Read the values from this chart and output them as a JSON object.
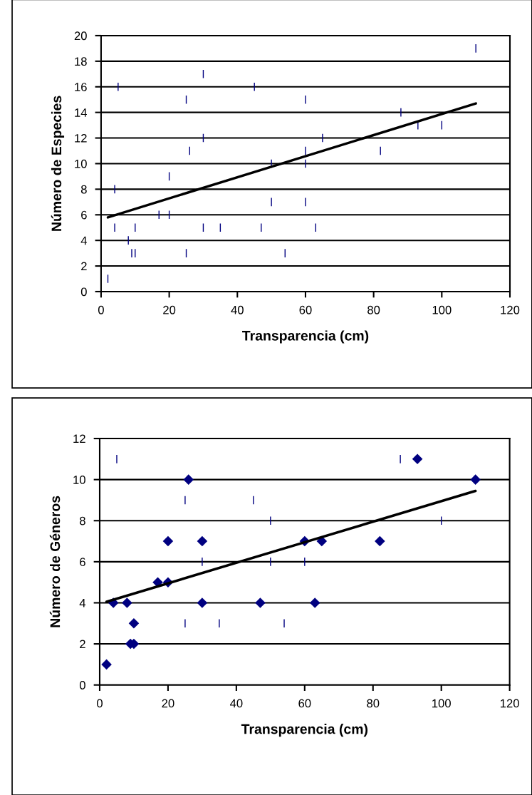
{
  "chart_data": [
    {
      "type": "scatter",
      "xlabel": "Transparencia (cm)",
      "ylabel": "Número de Especies",
      "xlim": [
        0,
        120
      ],
      "xticks": [
        0,
        20,
        40,
        60,
        80,
        100,
        120
      ],
      "ylim": [
        0,
        20
      ],
      "yticks": [
        0,
        2,
        4,
        6,
        8,
        10,
        12,
        14,
        16,
        18,
        20
      ],
      "grid": "y",
      "legend": false,
      "series": [
        {
          "type": "scatter",
          "color": "#000080",
          "x": [
            5,
            30,
            45,
            25,
            60,
            30,
            26,
            60,
            50,
            60,
            20,
            4,
            50,
            60,
            17,
            20,
            4,
            10,
            30,
            35,
            47,
            8,
            9,
            10,
            25,
            54,
            2,
            110,
            88,
            93,
            100,
            65,
            82,
            63
          ],
          "values": [
            16,
            17,
            16,
            15,
            15,
            12,
            11,
            11,
            10,
            10,
            9,
            8,
            7,
            7,
            6,
            6,
            5,
            5,
            5,
            5,
            5,
            4,
            3,
            3,
            3,
            3,
            1,
            19,
            14,
            13,
            13,
            12,
            11,
            5
          ]
        },
        {
          "type": "line",
          "marker": "none",
          "color": "#000000",
          "x": [
            2,
            110
          ],
          "values": [
            5.8,
            14.7
          ]
        }
      ]
    },
    {
      "type": "scatter",
      "xlabel": "Transparencia (cm)",
      "ylabel": "Número de Géneros",
      "xlim": [
        0,
        120
      ],
      "xticks": [
        0,
        20,
        40,
        60,
        80,
        100,
        120
      ],
      "ylim": [
        0,
        12
      ],
      "yticks": [
        0,
        2,
        4,
        6,
        8,
        10,
        12
      ],
      "grid": "y",
      "legend": false,
      "series": [
        {
          "type": "scatter",
          "color": "#000080",
          "x": [
            5,
            25,
            45,
            50,
            30,
            50,
            60,
            25,
            35,
            54,
            88,
            100
          ],
          "values": [
            11,
            9,
            9,
            8,
            6,
            6,
            6,
            3,
            3,
            3,
            11,
            8
          ]
        },
        {
          "type": "scatter",
          "marker": "diamond",
          "color": "#000080",
          "x": [
            2,
            4,
            8,
            10,
            9,
            10,
            17,
            20,
            20,
            26,
            30,
            30,
            47,
            60,
            63,
            65,
            82,
            93,
            110
          ],
          "values": [
            1,
            4,
            4,
            3,
            2,
            2,
            5,
            5,
            7,
            10,
            7,
            4,
            4,
            7,
            4,
            7,
            7,
            11,
            10
          ]
        },
        {
          "type": "line",
          "marker": "none",
          "color": "#000000",
          "x": [
            2,
            110
          ],
          "values": [
            4.05,
            9.45
          ]
        }
      ]
    }
  ]
}
